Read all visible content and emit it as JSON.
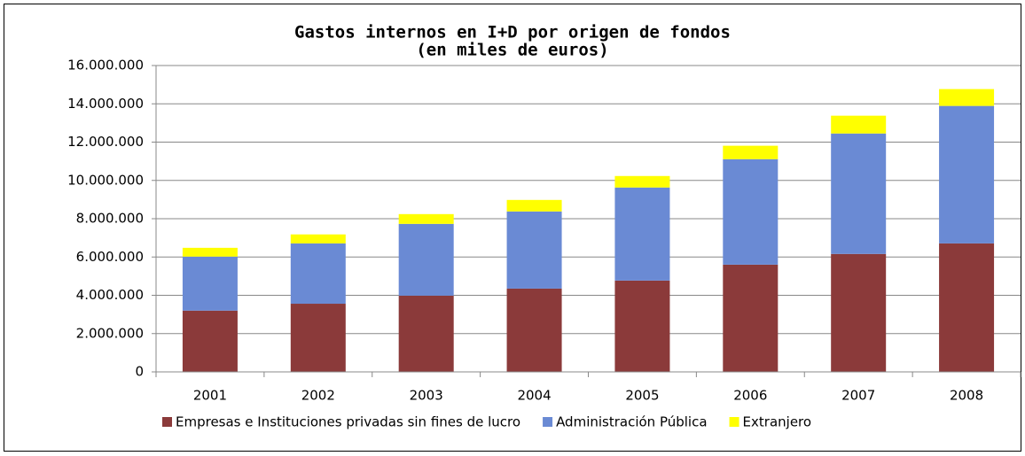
{
  "chart_data": {
    "type": "stacked_bar",
    "title": "Gastos internos en I+D por origen de fondos",
    "subtitle": "(en miles de euros)",
    "categories": [
      "2001",
      "2002",
      "2003",
      "2004",
      "2005",
      "2006",
      "2007",
      "2008"
    ],
    "series": [
      {
        "name": "Empresas e Instituciones privadas sin fines de lucro",
        "color": "#8b3a3a",
        "values": [
          3200000,
          3560000,
          3980000,
          4350000,
          4770000,
          5600000,
          6160000,
          6710000
        ]
      },
      {
        "name": "Administración Pública",
        "color": "#6a8ad4",
        "values": [
          2820000,
          3150000,
          3750000,
          4030000,
          4860000,
          5510000,
          6290000,
          7180000
        ]
      },
      {
        "name": "Extranjero",
        "color": "#ffff00",
        "values": [
          460000,
          470000,
          510000,
          600000,
          600000,
          700000,
          930000,
          880000
        ]
      }
    ],
    "ylim": [
      0,
      16000000
    ],
    "yticks": [
      0,
      {
        "value": 2000000,
        "label": "2.000.000"
      },
      {
        "value": 4000000,
        "label": "4.000.000"
      },
      {
        "value": 6000000,
        "label": "6.000.000"
      },
      {
        "value": 8000000,
        "label": "8.000.000"
      },
      {
        "value": 10000000,
        "label": "10.000.000"
      },
      {
        "value": 12000000,
        "label": "12.000.000"
      },
      {
        "value": 14000000,
        "label": "14.000.000"
      },
      {
        "value": 16000000,
        "label": "16.000.000"
      }
    ],
    "grid": true,
    "legend": "bottom"
  }
}
